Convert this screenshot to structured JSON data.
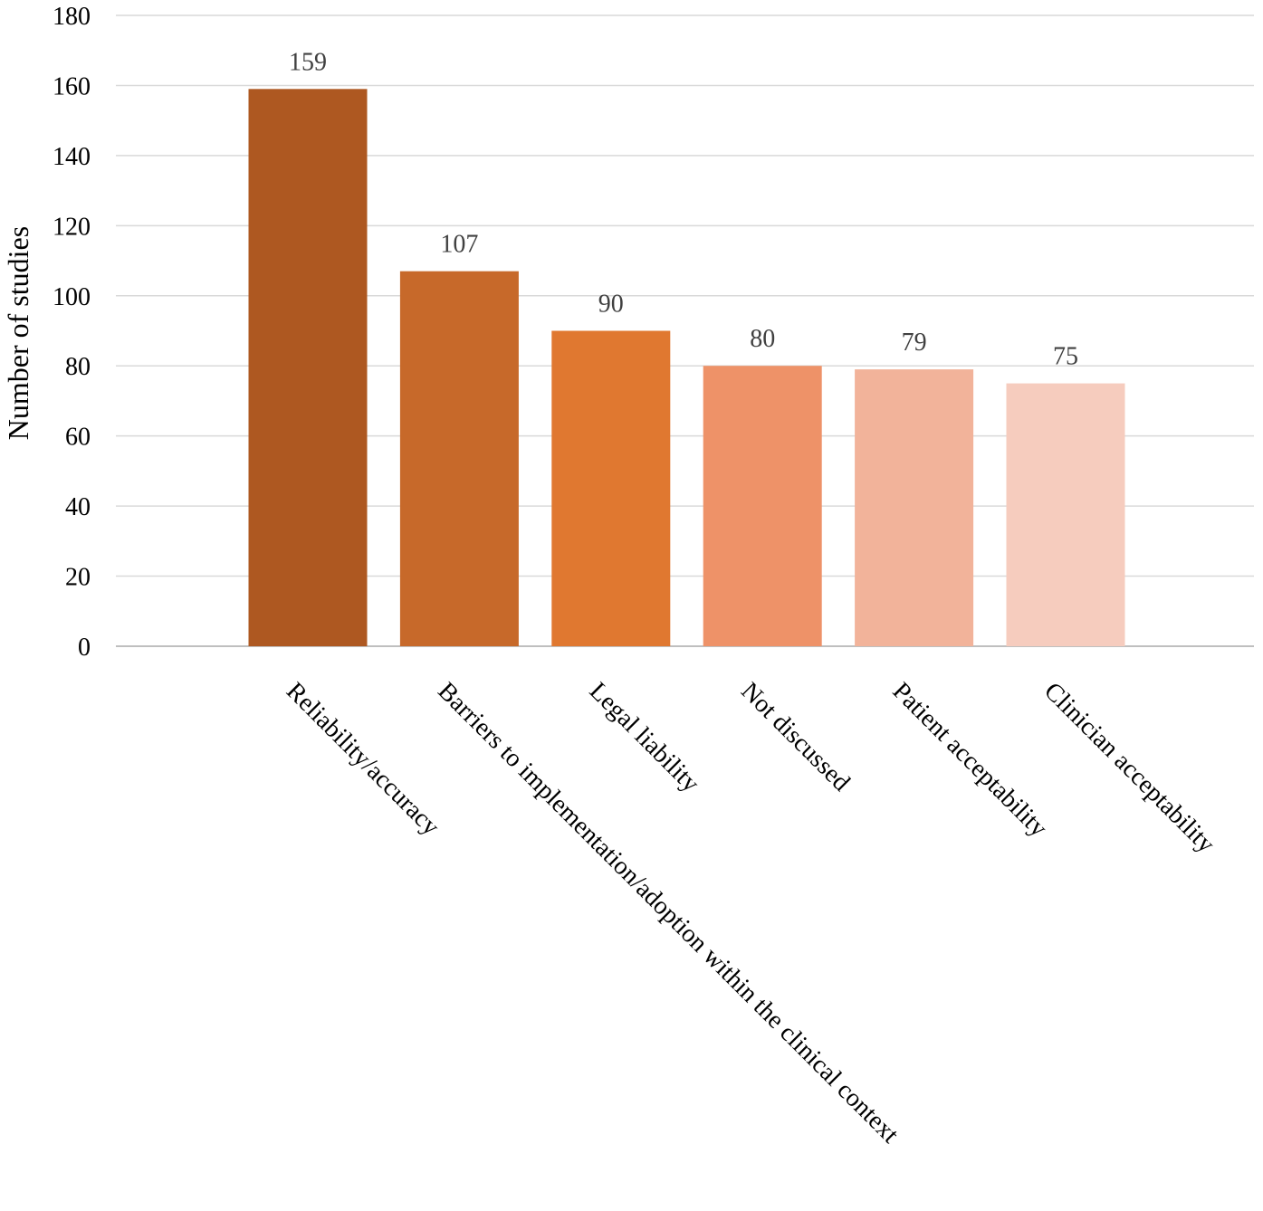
{
  "chart_data": {
    "type": "bar",
    "title": "",
    "xlabel": "",
    "ylabel": "Number of studies",
    "categories": [
      "Reliability/accuracy",
      "Barriers to implementation/adoption within the clinical context",
      "Legal liability",
      "Not discussed",
      "Patient acceptability",
      "Clinician acceptability"
    ],
    "values": [
      159,
      107,
      90,
      80,
      79,
      75
    ],
    "data_labels": [
      "159",
      "107",
      "90",
      "80",
      "79",
      "75"
    ],
    "ylim": [
      0,
      180
    ],
    "yticks": [
      0,
      20,
      40,
      60,
      80,
      100,
      120,
      140,
      160,
      180
    ],
    "grid": true,
    "legend": "none",
    "colors": [
      "#AE5821",
      "#C7692A",
      "#E07830",
      "#EE9268",
      "#F2B39A",
      "#F6CCBE"
    ]
  }
}
